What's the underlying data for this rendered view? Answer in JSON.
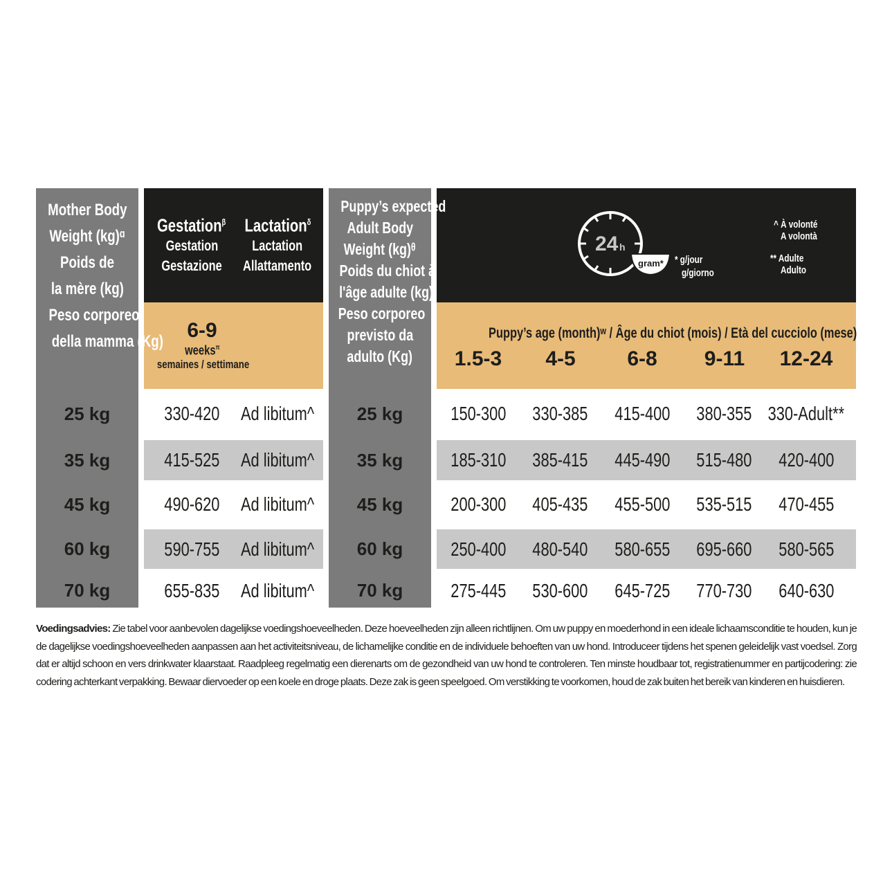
{
  "mother_header": [
    "Mother Body",
    "Weight (kg)ᵅ",
    "Poids de",
    "la mère (kg)",
    "Peso corporeo",
    "della mamma (Kg)"
  ],
  "gestation": {
    "title": "Gestation",
    "sup": "β",
    "fr": "Gestation",
    "it": "Gestazione"
  },
  "lactation": {
    "title": "Lactation",
    "sup": "δ",
    "fr": "Lactation",
    "it": "Allattamento"
  },
  "weeks": {
    "value": "6-9",
    "label": "weeks",
    "sup": "π",
    "sub": "semaines / settimane"
  },
  "puppy_header": [
    "Puppy’s expected",
    "Adult Body",
    "Weight (kg)ᶿ",
    "Poids du chiot à",
    "l'âge adulte (kg)",
    "Peso corporeo",
    "previsto da",
    "adulto (Kg)"
  ],
  "icon": {
    "name": "clock-24h-bowl-icon",
    "text": "24",
    "unit": "h",
    "bowl": "gram*"
  },
  "legend": {
    "g1": "* g/jour",
    "g2": "g/giorno",
    "a1": "^ À volonté",
    "a2": "A volontà",
    "b1": "** Adulte",
    "b2": "Adulto"
  },
  "age_header": "Puppy’s age (month)ʷ  /  Âge du chiot (mois)  /  Età del cucciolo (mese)",
  "ages": [
    "1.5-3",
    "4-5",
    "6-8",
    "9-11",
    "12-24"
  ],
  "rows": [
    {
      "mother": "25 kg",
      "gest": "330-420",
      "lact": "Ad libitum^",
      "puppy": "25 kg",
      "vals": [
        "150-300",
        "330-385",
        "415-400",
        "380-355",
        "330-Adult**"
      ]
    },
    {
      "mother": "35 kg",
      "gest": "415-525",
      "lact": "Ad libitum^",
      "puppy": "35 kg",
      "vals": [
        "185-310",
        "385-415",
        "445-490",
        "515-480",
        "420-400"
      ]
    },
    {
      "mother": "45 kg",
      "gest": "490-620",
      "lact": "Ad libitum^",
      "puppy": "45 kg",
      "vals": [
        "200-300",
        "405-435",
        "455-500",
        "535-515",
        "470-455"
      ]
    },
    {
      "mother": "60 kg",
      "gest": "590-755",
      "lact": "Ad libitum^",
      "puppy": "60 kg",
      "vals": [
        "250-400",
        "480-540",
        "580-655",
        "695-660",
        "580-565"
      ]
    },
    {
      "mother": "70 kg",
      "gest": "655-835",
      "lact": "Ad libitum^",
      "puppy": "70 kg",
      "vals": [
        "275-445",
        "530-600",
        "645-725",
        "770-730",
        "640-630"
      ]
    }
  ],
  "note": {
    "label": "Voedingsadvies:",
    "text": " Zie tabel voor aanbevolen dagelijkse voedingshoeveelheden. Deze hoeveelheden zijn alleen richtlijnen. Om uw puppy en moederhond in een ideale lichaamsconditie te houden, kun je de dagelijkse voedingshoeveelheden aanpassen aan het activiteitsniveau, de lichamelijke conditie en de individuele behoeften van uw hond. Introduceer tijdens het spenen geleidelijk vast voedsel. Zorg dat er altijd schoon en vers drinkwater klaarstaat. Raadpleeg regelmatig een dierenarts om de gezondheid van uw hond te controleren. Ten minste houdbaar tot, registratienummer en partijcodering: zie codering achterkant verpakking. Bewaar diervoeder op een koele en droge plaats. Deze zak is geen speelgoed. Om verstikking te voorkomen, houd de zak buiten het bereik van kinderen en huisdieren."
  }
}
